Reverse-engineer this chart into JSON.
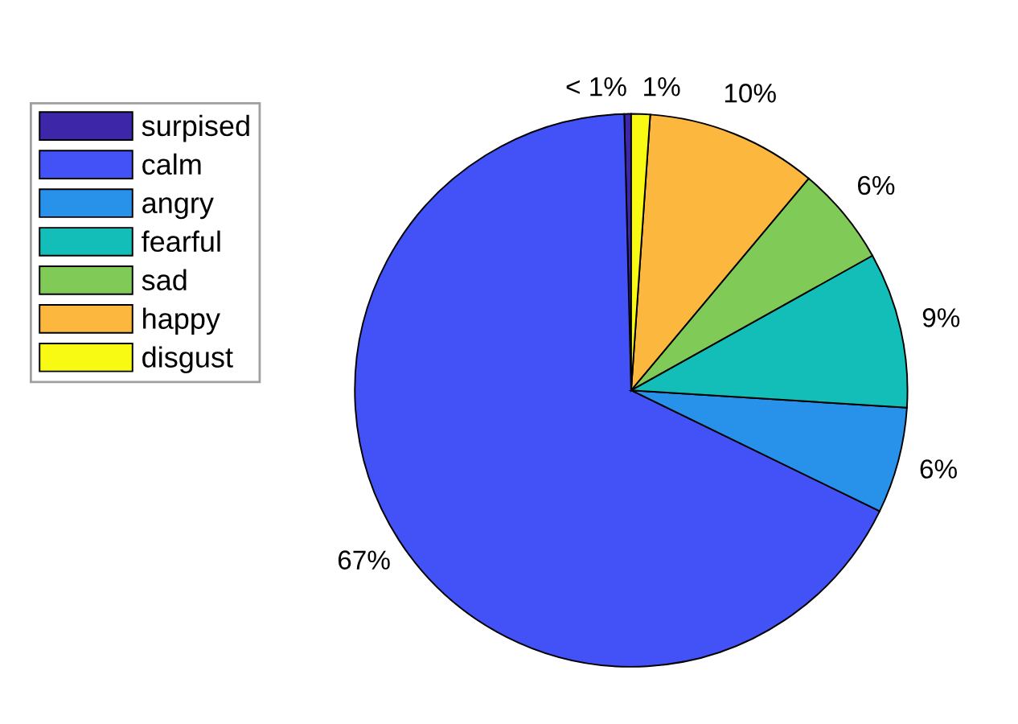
{
  "chart_data": {
    "type": "pie",
    "categories": [
      "surpised",
      "calm",
      "angry",
      "fearful",
      "sad",
      "happy",
      "disgust"
    ],
    "values": [
      0.4,
      67.4,
      6.2,
      9.1,
      5.8,
      10.0,
      1.1
    ],
    "value_labels": [
      "< 1%",
      "67%",
      "6%",
      "9%",
      "6%",
      "10%",
      "1%"
    ],
    "colors": [
      "#3e26a8",
      "#4352f6",
      "#2891ea",
      "#13bdb8",
      "#80cb58",
      "#fcb73e",
      "#f9fa14"
    ],
    "legend": "left"
  }
}
